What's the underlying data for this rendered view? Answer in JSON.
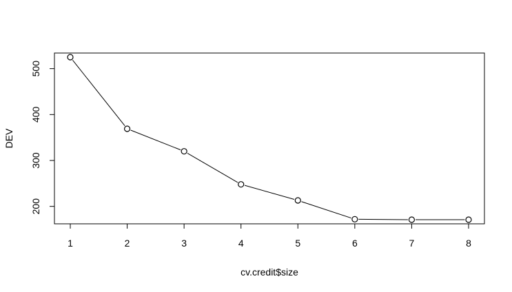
{
  "chart_data": {
    "type": "line",
    "title": "",
    "xlabel": "cv.credit$size",
    "ylabel": "DEV",
    "x": [
      1,
      2,
      3,
      4,
      5,
      6,
      7,
      8
    ],
    "y": [
      525,
      369,
      320,
      248,
      213,
      172,
      171,
      171
    ],
    "xlim": [
      1,
      8
    ],
    "ylim": [
      162,
      534
    ],
    "xticks": [
      "1",
      "2",
      "3",
      "4",
      "5",
      "6",
      "7",
      "8"
    ],
    "yticks": [
      "200",
      "300",
      "400",
      "500"
    ],
    "marker": "open-circle",
    "line_color": "#000000",
    "grid": false,
    "legend": "none"
  }
}
